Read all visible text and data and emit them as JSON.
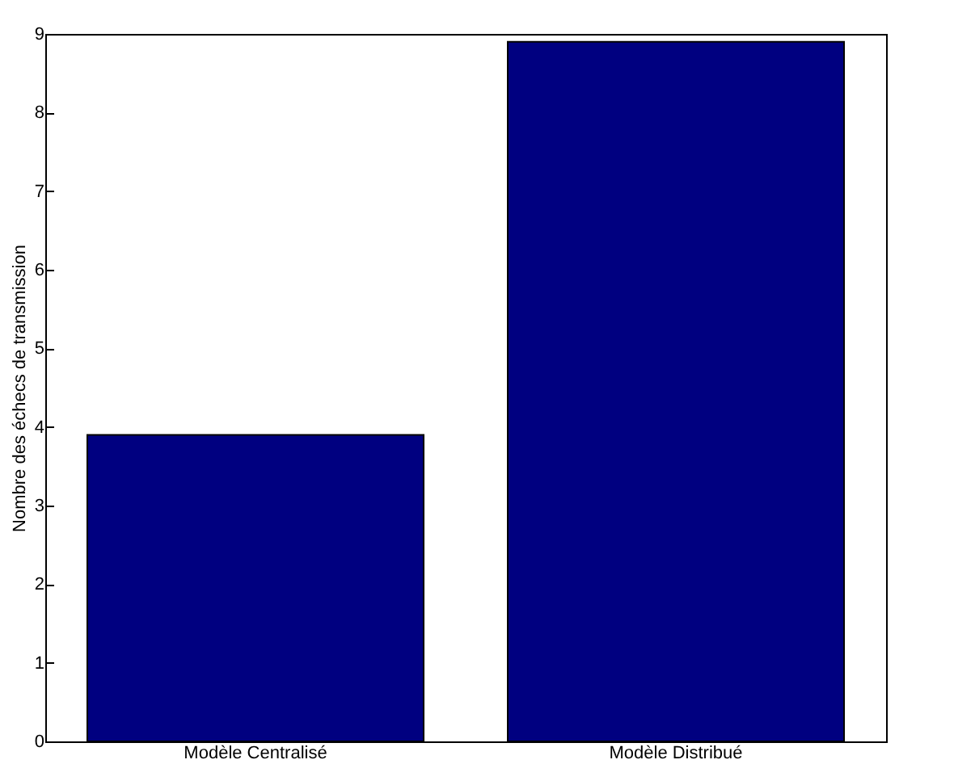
{
  "chart_data": {
    "type": "bar",
    "ylabel": "Nombre des échecs de transmission",
    "categories": [
      "Modèle Centralisé",
      "Modèle Distribué"
    ],
    "values": [
      3.9,
      8.9
    ],
    "color": "#000080",
    "ylim": [
      0,
      9
    ],
    "yticks": [
      0,
      1,
      2,
      3,
      4,
      5,
      6,
      7,
      8,
      9
    ],
    "grid": false
  }
}
